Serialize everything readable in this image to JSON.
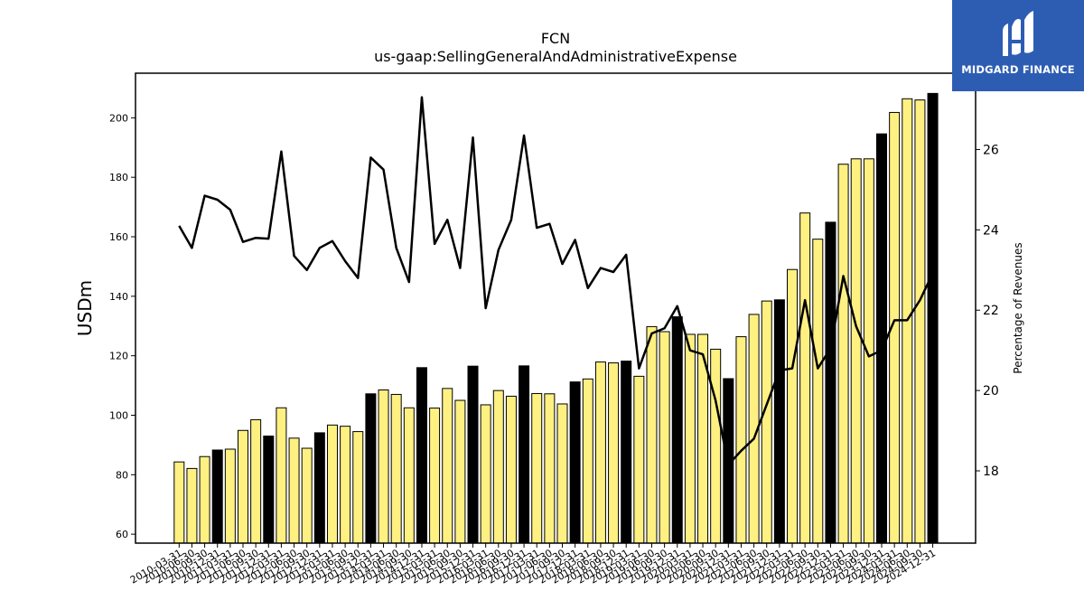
{
  "logo": {
    "text": "MIDGARD FINANCE",
    "icon": "midgard-logo-icon",
    "background": "#2d5db3"
  },
  "chart_data": {
    "type": "bar",
    "title": "FCN",
    "subtitle": "us-gaap:SellingGeneralAndAdministrativeExpense",
    "ylabel": "USDm",
    "y2label": "Percentage of Revenues",
    "ylim": [
      57,
      215
    ],
    "y2lim": [
      16.2,
      27.9
    ],
    "yticks": [
      60,
      80,
      100,
      120,
      140,
      160,
      180,
      200
    ],
    "y2ticks": [
      18,
      20,
      22,
      24,
      26
    ],
    "grid": false,
    "colors": {
      "quarter_bar": "#fff082",
      "year_end_bar": "#000000",
      "line": "#000000"
    },
    "categories": [
      "2010-03-31",
      "2010-06-30",
      "2010-09-30",
      "2010-12-31",
      "2011-03-31",
      "2011-06-30",
      "2011-09-30",
      "2011-12-31",
      "2012-03-31",
      "2012-06-30",
      "2012-09-30",
      "2012-12-31",
      "2013-03-31",
      "2013-06-30",
      "2013-09-30",
      "2013-12-31",
      "2014-03-31",
      "2014-06-30",
      "2014-09-30",
      "2014-12-31",
      "2015-03-31",
      "2015-06-30",
      "2015-09-30",
      "2015-12-31",
      "2016-03-31",
      "2016-06-30",
      "2016-09-30",
      "2016-12-31",
      "2017-03-31",
      "2017-06-30",
      "2017-09-30",
      "2017-12-31",
      "2018-03-31",
      "2018-06-30",
      "2018-09-30",
      "2018-12-31",
      "2019-03-31",
      "2019-06-30",
      "2019-09-30",
      "2019-12-31",
      "2020-03-31",
      "2020-06-30",
      "2020-09-30",
      "2020-12-31",
      "2021-03-31",
      "2021-06-30",
      "2021-09-30",
      "2021-12-31",
      "2022-03-31",
      "2022-06-30",
      "2022-09-30",
      "2022-12-31",
      "2023-03-31",
      "2023-06-30",
      "2023-09-30",
      "2023-12-31",
      "2024-03-31",
      "2024-06-30",
      "2024-09-30",
      "2024-12-31"
    ],
    "series": [
      {
        "kind": "bar",
        "axis": "left",
        "values": [
          84.3,
          82.1,
          86.1,
          88.3,
          88.6,
          94.9,
          98.5,
          93.0,
          102.5,
          92.3,
          88.9,
          94.1,
          96.7,
          96.3,
          94.5,
          107.2,
          108.5,
          107.0,
          102.5,
          116.0,
          102.4,
          109.0,
          105.0,
          116.5,
          103.5,
          108.3,
          106.4,
          116.6,
          107.3,
          107.2,
          103.8,
          111.2,
          112.2,
          117.9,
          117.6,
          118.2,
          113.1,
          129.8,
          128.1,
          133.1,
          127.2,
          127.2,
          122.2,
          112.3,
          126.4,
          133.9,
          138.4,
          138.8,
          149.0,
          168.0,
          159.2,
          164.9,
          184.4,
          186.2,
          186.2,
          194.6,
          201.8,
          206.4,
          206.0,
          208.2
        ],
        "year_end": [
          false,
          false,
          false,
          true,
          false,
          false,
          false,
          true,
          false,
          false,
          false,
          true,
          false,
          false,
          false,
          true,
          false,
          false,
          false,
          true,
          false,
          false,
          false,
          true,
          false,
          false,
          false,
          true,
          false,
          false,
          false,
          true,
          false,
          false,
          false,
          true,
          false,
          false,
          false,
          true,
          false,
          false,
          false,
          true,
          false,
          false,
          false,
          true,
          false,
          false,
          false,
          true,
          false,
          false,
          false,
          true,
          false,
          false,
          false,
          true
        ]
      },
      {
        "kind": "line",
        "axis": "right",
        "values": [
          24.1,
          23.55,
          24.85,
          24.75,
          24.5,
          23.7,
          23.8,
          23.78,
          25.95,
          23.35,
          23.0,
          23.55,
          23.72,
          23.22,
          22.8,
          25.8,
          25.5,
          23.55,
          22.7,
          27.3,
          23.65,
          24.25,
          23.05,
          26.3,
          22.05,
          23.5,
          24.25,
          26.35,
          24.05,
          24.15,
          23.15,
          23.75,
          22.55,
          23.05,
          22.95,
          23.38,
          20.55,
          21.42,
          21.55,
          22.1,
          21.0,
          20.9,
          19.75,
          18.15,
          18.5,
          18.8,
          19.65,
          20.5,
          20.55,
          22.25,
          20.55,
          21.05,
          22.85,
          21.6,
          20.85,
          21.0,
          21.75,
          21.75,
          22.25,
          22.92
        ]
      }
    ]
  }
}
